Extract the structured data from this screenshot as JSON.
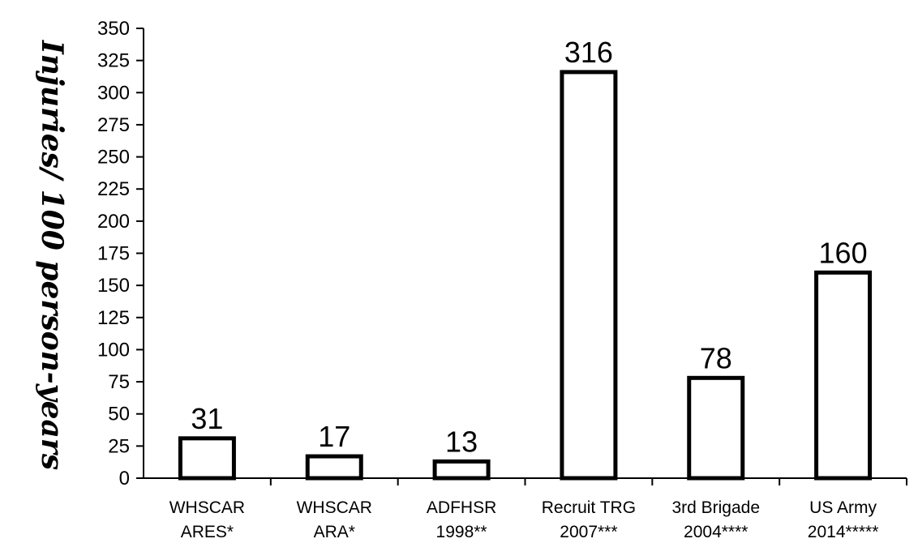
{
  "chart_data": {
    "type": "bar",
    "title": "",
    "xlabel": "",
    "ylabel": "Injuries/ 100 person-years",
    "ylim": [
      0,
      350
    ],
    "yticks": [
      0,
      25,
      50,
      75,
      100,
      125,
      150,
      175,
      200,
      225,
      250,
      275,
      300,
      325,
      350
    ],
    "grid": false,
    "legend": "none",
    "categories": [
      [
        "WHSCAR",
        "ARES*"
      ],
      [
        "WHSCAR",
        "ARA*"
      ],
      [
        "ADFHSR",
        "1998**"
      ],
      [
        "Recruit TRG",
        "2007***"
      ],
      [
        "3rd Brigade",
        "2004****"
      ],
      [
        "US Army",
        "2014*****"
      ]
    ],
    "values": [
      31,
      17,
      13,
      316,
      78,
      160
    ],
    "data_labels": [
      "31",
      "17",
      "13",
      "316",
      "78",
      "160"
    ],
    "colors": {
      "bar_fill": "#ffffff",
      "bar_stroke": "#000000",
      "axis": "#000000"
    }
  }
}
